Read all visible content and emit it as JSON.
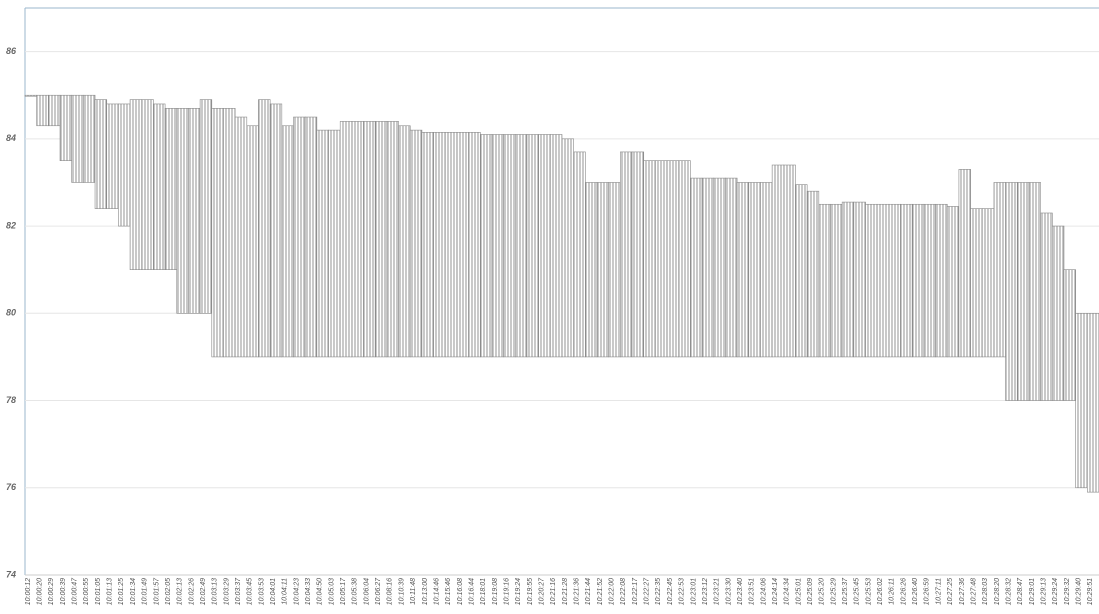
{
  "chart_data": {
    "type": "high-low",
    "categories": [
      "10:00:12",
      "10:00:20",
      "10:00:29",
      "10:00:39",
      "10:00:47",
      "10:00:55",
      "10:01:05",
      "10:01:13",
      "10:01:25",
      "10:01:34",
      "10:01:49",
      "10:01:57",
      "10:02:05",
      "10:02:13",
      "10:02:26",
      "10:02:49",
      "10:03:13",
      "10:03:29",
      "10:03:37",
      "10:03:45",
      "10:03:53",
      "10:04:01",
      "10:04:11",
      "10:04:23",
      "10:04:33",
      "10:04:50",
      "10:05:03",
      "10:05:17",
      "10:05:38",
      "10:06:04",
      "10:06:27",
      "10:08:16",
      "10:10:39",
      "10:11:48",
      "10:13:00",
      "10:14:46",
      "10:15:46",
      "10:16:08",
      "10:16:44",
      "10:18:01",
      "10:19:08",
      "10:19:16",
      "10:19:24",
      "10:19:55",
      "10:20:27",
      "10:21:16",
      "10:21:28",
      "10:21:36",
      "10:21:44",
      "10:21:52",
      "10:22:00",
      "10:22:08",
      "10:22:17",
      "10:22:27",
      "10:22:35",
      "10:22:45",
      "10:22:53",
      "10:23:01",
      "10:23:12",
      "10:23:21",
      "10:23:30",
      "10:23:40",
      "10:23:51",
      "10:24:06",
      "10:24:14",
      "10:24:34",
      "10:25:01",
      "10:25:09",
      "10:25:20",
      "10:25:29",
      "10:25:37",
      "10:25:45",
      "10:25:53",
      "10:26:02",
      "10:26:11",
      "10:26:26",
      "10:26:40",
      "10:26:59",
      "10:27:11",
      "10:27:25",
      "10:27:36",
      "10:27:48",
      "10:28:03",
      "10:28:20",
      "10:28:32",
      "10:28:47",
      "10:29:01",
      "10:29:13",
      "10:29:24",
      "10:29:32",
      "10:29:40",
      "10:29:51"
    ],
    "high": [
      85,
      85,
      85,
      85,
      85,
      85,
      84.9,
      84.8,
      84.8,
      84.9,
      84.9,
      84.8,
      84.7,
      84.7,
      84.7,
      84.9,
      84.7,
      84.7,
      84.5,
      84.3,
      84.9,
      84.8,
      84.3,
      84.5,
      84.5,
      84.2,
      84.2,
      84.4,
      84.4,
      84.4,
      84.4,
      84.4,
      84.3,
      84.2,
      84.15,
      84.15,
      84.15,
      84.15,
      84.15,
      84.1,
      84.1,
      84.1,
      84.1,
      84.1,
      84.1,
      84.1,
      84,
      83.7,
      83,
      83,
      83,
      83.7,
      83.7,
      83.5,
      83.5,
      83.5,
      83.5,
      83.1,
      83.1,
      83.1,
      83.1,
      83,
      83,
      83,
      83.4,
      83.4,
      82.95,
      82.8,
      82.5,
      82.5,
      82.55,
      82.55,
      82.5,
      82.5,
      82.5,
      82.5,
      82.5,
      82.5,
      82.5,
      82.45,
      83.3,
      82.4,
      82.4,
      83,
      83,
      83,
      83,
      82.3,
      82,
      81,
      80,
      80
    ],
    "low": [
      85,
      84.3,
      84.3,
      83.5,
      83,
      83,
      82.4,
      82.4,
      82,
      81,
      81,
      81,
      81,
      80,
      80,
      80,
      79,
      79,
      79,
      79,
      79,
      79,
      79,
      79,
      79,
      79,
      79,
      79,
      79,
      79,
      79,
      79,
      79,
      79,
      79,
      79,
      79,
      79,
      79,
      79,
      79,
      79,
      79,
      79,
      79,
      79,
      79,
      79,
      79,
      79,
      79,
      79,
      79,
      79,
      79,
      79,
      79,
      79,
      79,
      79,
      79,
      79,
      79,
      79,
      79,
      79,
      79,
      79,
      79,
      79,
      79,
      79,
      79,
      79,
      79,
      79,
      79,
      79,
      79,
      79,
      79,
      79,
      79,
      79,
      78,
      78,
      78,
      78,
      78,
      78,
      76,
      75.9
    ],
    "color": "#888888",
    "ylim": [
      74,
      87
    ],
    "yticks": [
      74,
      76,
      78,
      80,
      82,
      84,
      86
    ],
    "grid": true
  }
}
